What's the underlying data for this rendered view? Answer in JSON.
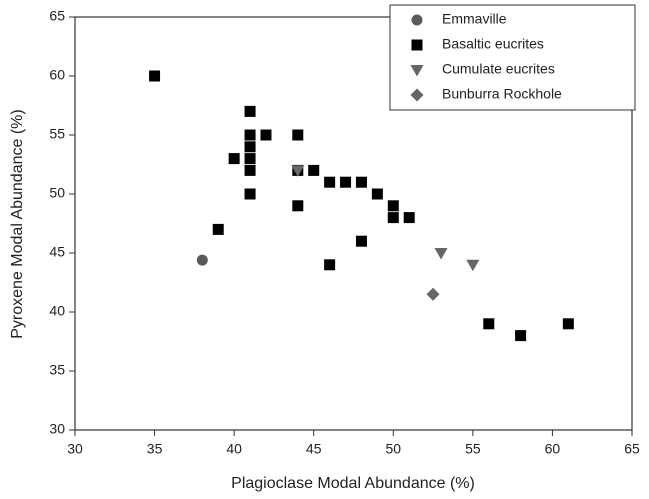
{
  "chart_data": {
    "type": "scatter",
    "xlabel": "Plagioclase Modal Abundance (%)",
    "ylabel": "Pyroxene Modal Abundance (%)",
    "xlim": [
      30,
      65
    ],
    "xticks": [
      30,
      35,
      40,
      45,
      50,
      55,
      60,
      65
    ],
    "ylim": [
      30,
      65
    ],
    "yticks": [
      30,
      35,
      40,
      45,
      50,
      55,
      60,
      65
    ],
    "legend": "upper right",
    "series": [
      {
        "name": "Emmaville",
        "color": "#5a5a5a",
        "marker": "circle",
        "x": [
          38
        ],
        "values": [
          44.4
        ]
      },
      {
        "name": "Basaltic eucrites",
        "color": "#000000",
        "marker": "square",
        "x": [
          35,
          41,
          41,
          42,
          44,
          40,
          41,
          41,
          41,
          41,
          44,
          45,
          47,
          46,
          48,
          49,
          50,
          50,
          51,
          44,
          39,
          48,
          46,
          56,
          58,
          61
        ],
        "values": [
          60,
          57,
          55,
          55,
          55,
          53,
          54,
          53,
          52,
          50,
          52,
          52,
          51,
          51,
          51,
          50,
          49,
          48,
          48,
          49,
          47,
          46,
          44,
          39,
          38,
          39
        ]
      },
      {
        "name": "Cumulate eucrites",
        "color": "#666666",
        "marker": "triangle",
        "x": [
          44,
          53,
          55
        ],
        "values": [
          52,
          45,
          44
        ]
      },
      {
        "name": "Bunburra Rockhole",
        "color": "#666666",
        "marker": "diamond",
        "x": [
          52.5
        ],
        "values": [
          41.5
        ]
      }
    ]
  }
}
